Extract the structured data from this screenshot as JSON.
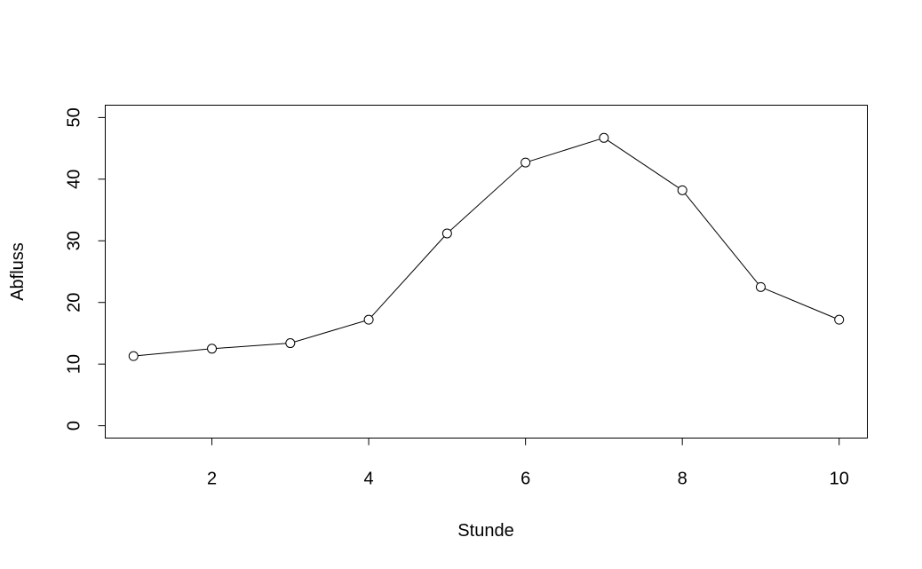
{
  "chart_data": {
    "type": "line",
    "xlabel": "Stunde",
    "ylabel": "Abfluss",
    "x": [
      1,
      2,
      3,
      4,
      5,
      6,
      7,
      8,
      9,
      10
    ],
    "series": [
      {
        "values": [
          11.3,
          12.5,
          13.4,
          17.2,
          31.2,
          42.7,
          46.7,
          38.2,
          22.5,
          17.2
        ]
      }
    ],
    "xlim": [
      0.64,
      10.36
    ],
    "ylim": [
      -2,
      52
    ],
    "xticks": [
      2,
      4,
      6,
      8,
      10
    ],
    "yticks": [
      0,
      10,
      20,
      30,
      40,
      50
    ],
    "grid": false,
    "legend": "none",
    "line_color": "#000000",
    "marker": "open-circle"
  }
}
